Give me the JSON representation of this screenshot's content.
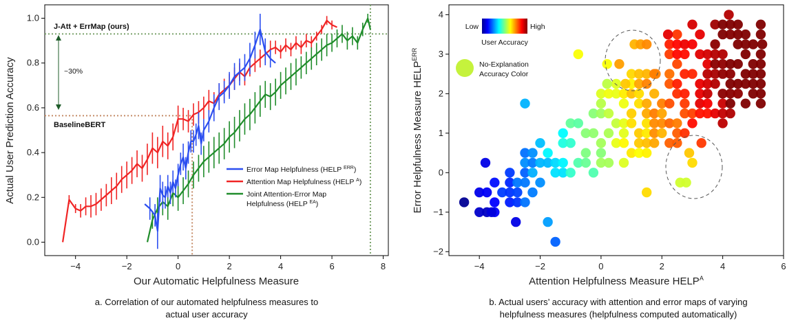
{
  "chart_data": [
    {
      "type": "line",
      "xlabel": "Our Automatic Helpfulness Measure",
      "ylabel": "Actual User Prediction Accuracy",
      "xlim": [
        -5.2,
        8.2
      ],
      "ylim": [
        -0.06,
        1.06
      ],
      "xticks": [
        -4,
        -2,
        0,
        2,
        4,
        6,
        8
      ],
      "xtick_labels": [
        "−4",
        "−2",
        "0",
        "2",
        "4",
        "6",
        "8"
      ],
      "yticks": [
        0.0,
        0.2,
        0.4,
        0.6,
        0.8,
        1.0
      ],
      "ytick_labels": [
        "0.0",
        "0.2",
        "0.4",
        "0.6",
        "0.8",
        "1.0"
      ],
      "grid": false,
      "legend_position": "lower-right",
      "colors": {
        "err": "#2b4ef0",
        "att": "#f02424",
        "joint": "#1f8c2a",
        "top_ref": "#7aa26a",
        "base_ref": "#c48a66"
      },
      "annotations": {
        "top_label": "J-Att + ErrMap (ours)",
        "top_y": 0.93,
        "top_vline_x": 7.5,
        "base_label": "BaselineBERT",
        "base_y": 0.565,
        "base_vline_x": 0.55,
        "gap_label": "~30%"
      },
      "series": [
        {
          "key": "err",
          "name": "Error Map Helpfulness (HELP ",
          "sup": "ERR",
          "name_end": ")",
          "x": [
            -1.3,
            -1.1,
            -0.9,
            -0.8,
            -0.7,
            -0.6,
            -0.5,
            -0.4,
            -0.3,
            -0.2,
            -0.1,
            0.0,
            0.1,
            0.2,
            0.3,
            0.4,
            0.5,
            0.6,
            0.7,
            0.8,
            0.9,
            1.0,
            1.2,
            1.4,
            1.6,
            1.8,
            2.0,
            2.2,
            2.4,
            2.6,
            2.8,
            3.0,
            3.2,
            3.4,
            3.6,
            3.8
          ],
          "y": [
            0.17,
            0.15,
            0.12,
            0.05,
            0.24,
            0.21,
            0.2,
            0.25,
            0.22,
            0.27,
            0.24,
            0.3,
            0.35,
            0.38,
            0.33,
            0.4,
            0.45,
            0.45,
            0.48,
            0.52,
            0.44,
            0.5,
            0.54,
            0.6,
            0.65,
            0.67,
            0.7,
            0.74,
            0.76,
            0.78,
            0.82,
            0.88,
            0.95,
            0.85,
            0.82,
            0.8
          ],
          "err": [
            0.0,
            0.05,
            0.05,
            0.08,
            0.06,
            0.06,
            0.05,
            0.05,
            0.05,
            0.05,
            0.04,
            0.05,
            0.05,
            0.06,
            0.05,
            0.05,
            0.05,
            0.05,
            0.05,
            0.06,
            0.05,
            0.05,
            0.05,
            0.06,
            0.06,
            0.05,
            0.06,
            0.06,
            0.06,
            0.06,
            0.07,
            0.06,
            0.07,
            0.06,
            0.04,
            0.0
          ]
        },
        {
          "key": "att",
          "name": "Attention Map Helpfulness (HELP ",
          "sup": "A",
          "name_end": ")",
          "x": [
            -4.5,
            -4.25,
            -4.0,
            -3.8,
            -3.6,
            -3.4,
            -3.2,
            -3.0,
            -2.8,
            -2.6,
            -2.4,
            -2.2,
            -2.0,
            -1.8,
            -1.6,
            -1.4,
            -1.2,
            -1.0,
            -0.8,
            -0.6,
            -0.4,
            -0.2,
            0.0,
            0.2,
            0.4,
            0.6,
            0.8,
            1.0,
            1.2,
            1.4,
            1.6,
            1.8,
            2.0,
            2.2,
            2.4,
            2.6,
            2.8,
            3.0,
            3.2,
            3.4,
            3.6,
            3.8,
            4.0,
            4.2,
            4.4,
            4.6,
            4.8,
            5.0,
            5.2,
            5.4,
            5.6,
            5.8,
            6.0,
            6.2
          ],
          "y": [
            0.0,
            0.19,
            0.15,
            0.14,
            0.16,
            0.16,
            0.17,
            0.19,
            0.21,
            0.23,
            0.25,
            0.28,
            0.3,
            0.32,
            0.35,
            0.33,
            0.37,
            0.42,
            0.4,
            0.45,
            0.43,
            0.47,
            0.55,
            0.55,
            0.54,
            0.57,
            0.58,
            0.6,
            0.63,
            0.62,
            0.66,
            0.68,
            0.7,
            0.73,
            0.76,
            0.74,
            0.78,
            0.8,
            0.82,
            0.84,
            0.86,
            0.87,
            0.85,
            0.88,
            0.86,
            0.89,
            0.87,
            0.9,
            0.89,
            0.92,
            0.95,
            0.99,
            0.97,
            0.96
          ],
          "err": [
            0.0,
            0.02,
            0.02,
            0.03,
            0.04,
            0.05,
            0.05,
            0.05,
            0.05,
            0.06,
            0.06,
            0.06,
            0.06,
            0.06,
            0.06,
            0.06,
            0.07,
            0.07,
            0.07,
            0.07,
            0.06,
            0.06,
            0.06,
            0.05,
            0.05,
            0.05,
            0.05,
            0.05,
            0.05,
            0.05,
            0.05,
            0.05,
            0.05,
            0.05,
            0.04,
            0.04,
            0.04,
            0.04,
            0.04,
            0.04,
            0.04,
            0.03,
            0.03,
            0.03,
            0.03,
            0.03,
            0.03,
            0.03,
            0.03,
            0.02,
            0.02,
            0.02,
            0.02,
            0.0
          ]
        },
        {
          "key": "joint",
          "name": "Joint Attention-Error Map",
          "name2": "Helpfulness (HELP ",
          "sup": "EA",
          "name_end": ")",
          "x": [
            -1.2,
            -1.0,
            -0.8,
            -0.6,
            -0.4,
            -0.2,
            0.0,
            0.2,
            0.4,
            0.6,
            0.8,
            1.0,
            1.2,
            1.4,
            1.6,
            1.8,
            2.0,
            2.2,
            2.4,
            2.6,
            2.8,
            3.0,
            3.2,
            3.4,
            3.6,
            3.8,
            4.0,
            4.2,
            4.4,
            4.6,
            4.8,
            5.0,
            5.2,
            5.4,
            5.6,
            5.8,
            6.0,
            6.2,
            6.4,
            6.6,
            6.8,
            7.0,
            7.2,
            7.4,
            7.5
          ],
          "y": [
            0.0,
            0.1,
            0.15,
            0.18,
            0.16,
            0.22,
            0.2,
            0.23,
            0.26,
            0.3,
            0.33,
            0.36,
            0.38,
            0.4,
            0.42,
            0.44,
            0.47,
            0.49,
            0.52,
            0.55,
            0.57,
            0.6,
            0.63,
            0.66,
            0.65,
            0.67,
            0.7,
            0.72,
            0.74,
            0.76,
            0.78,
            0.8,
            0.82,
            0.84,
            0.86,
            0.88,
            0.89,
            0.91,
            0.93,
            0.9,
            0.92,
            0.89,
            0.95,
            1.0,
            0.95
          ],
          "err": [
            0.0,
            0.04,
            0.05,
            0.06,
            0.06,
            0.06,
            0.06,
            0.06,
            0.06,
            0.06,
            0.06,
            0.07,
            0.07,
            0.07,
            0.07,
            0.07,
            0.07,
            0.07,
            0.07,
            0.07,
            0.07,
            0.07,
            0.07,
            0.06,
            0.06,
            0.06,
            0.06,
            0.06,
            0.06,
            0.06,
            0.05,
            0.05,
            0.05,
            0.05,
            0.05,
            0.05,
            0.04,
            0.04,
            0.04,
            0.04,
            0.04,
            0.03,
            0.03,
            0.02,
            0.0
          ]
        }
      ],
      "caption_lines": [
        "a. Correlation of our automated helpfulness measures to",
        "actual user accuracy"
      ]
    },
    {
      "type": "scatter",
      "xlabel": "Attention Helpfulness Measure HELP",
      "xlabel_sup": "A",
      "ylabel": "Error Helpfulness Measure HELP",
      "ylabel_sup": "ERR",
      "xlim": [
        -5.0,
        6.0
      ],
      "ylim": [
        -2.1,
        4.25
      ],
      "xticks": [
        -4,
        -2,
        0,
        2,
        4,
        6
      ],
      "xtick_labels": [
        "−4",
        "−2",
        "0",
        "2",
        "4",
        "6"
      ],
      "yticks": [
        -2,
        -1,
        0,
        1,
        2,
        3,
        4
      ],
      "ytick_labels": [
        "−2",
        "−1",
        "0",
        "1",
        "2",
        "3",
        "4"
      ],
      "grid": false,
      "colorbar": {
        "low": "Low",
        "high": "High",
        "title": "User Accuracy",
        "position": "top-left"
      },
      "no_explanation": {
        "label_lines": [
          "No-Explanation",
          "Accuracy Color"
        ],
        "color": "#c5f23c"
      },
      "color_field": "value in 0..1 mapped to jet colormap",
      "clusters": [
        {
          "x": -4.5,
          "y": -0.75,
          "c": 0.02
        },
        {
          "x": -3.8,
          "y": 0.25,
          "c": 0.1
        },
        {
          "x": -3.6,
          "y": -1.0,
          "c": 0.09
        },
        {
          "x": -2.8,
          "y": -1.25,
          "c": 0.1
        },
        {
          "x": -1.5,
          "y": -1.75,
          "c": 0.22
        },
        {
          "x": -1.75,
          "y": -1.25,
          "c": 0.28
        },
        {
          "x": -2.5,
          "y": 1.75,
          "c": 0.3
        },
        {
          "x": -0.75,
          "y": 3.0,
          "c": 0.62
        },
        {
          "x": 4.2,
          "y": 4.0,
          "c": 0.95
        },
        {
          "x": 5.3,
          "y": 3.25,
          "c": 1.0
        },
        {
          "x": 2.2,
          "y": 3.5,
          "c": 0.9
        },
        {
          "x": 3.3,
          "y": 0.75,
          "c": 0.82
        },
        {
          "x": 2.9,
          "y": 0.5,
          "c": 0.68
        },
        {
          "x": 3.0,
          "y": 0.25,
          "c": 0.66
        },
        {
          "x": 2.6,
          "y": -0.25,
          "c": 0.58
        },
        {
          "x": 2.8,
          "y": -0.25,
          "c": 0.58
        },
        {
          "x": 1.5,
          "y": -0.5,
          "c": 0.66
        },
        {
          "x": 0.6,
          "y": 2.75,
          "c": 0.72
        },
        {
          "x": 1.1,
          "y": 3.25,
          "c": 0.7
        },
        {
          "x": 1.3,
          "y": 3.25,
          "c": 0.72
        },
        {
          "x": 1.5,
          "y": 3.25,
          "c": 0.74
        },
        {
          "x": 0.2,
          "y": 2.75,
          "c": 0.62
        },
        {
          "x": 0.2,
          "y": 2.25,
          "c": 0.56
        },
        {
          "x": 1.8,
          "y": 2.5,
          "c": 0.75
        },
        {
          "x": 0.8,
          "y": 2.25,
          "c": 0.68
        }
      ],
      "annotations": {
        "dashed_circles": 2
      },
      "caption_lines": [
        "b. Actual users’ accuracy with attention and error maps of varying",
        "helpfulness measures (helpfulness computed automatically)"
      ]
    }
  ]
}
